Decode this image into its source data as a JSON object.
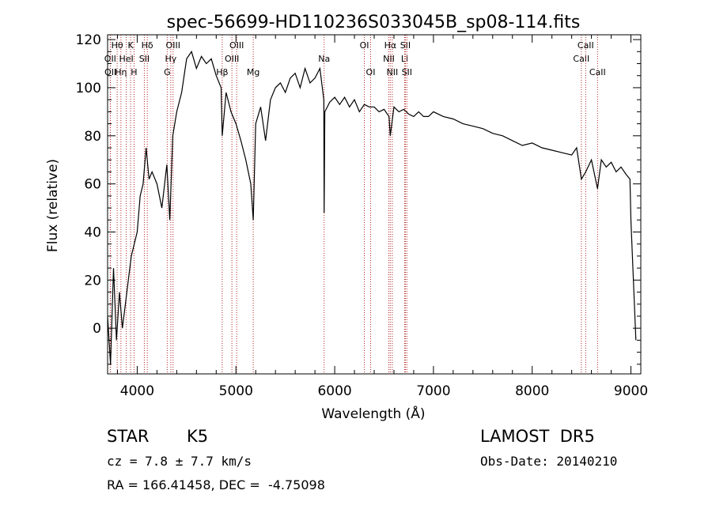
{
  "chart_data": {
    "type": "line",
    "title": "spec-56699-HD110236S033045B_sp08-114.fits",
    "xlabel": "Wavelength (Å)",
    "ylabel": "Flux (relative)",
    "xlim": [
      3700,
      9100
    ],
    "ylim": [
      -19,
      122
    ],
    "xticks": [
      4000,
      5000,
      6000,
      7000,
      8000,
      9000
    ],
    "yticks": [
      0,
      20,
      40,
      60,
      80,
      100,
      120
    ],
    "grid": false,
    "line_color": "#000000",
    "marker_color": "#b22222",
    "series": [
      {
        "x": [
          3700,
          3730,
          3760,
          3790,
          3820,
          3850,
          3880,
          3910,
          3940,
          3970,
          4000,
          4030,
          4060,
          4090,
          4120,
          4150,
          4200,
          4250,
          4300,
          4330,
          4360,
          4400,
          4450,
          4500,
          4550,
          4600,
          4650,
          4700,
          4750,
          4800,
          4850,
          4861,
          4900,
          4950,
          5000,
          5050,
          5100,
          5150,
          5175,
          5200,
          5250,
          5300,
          5350,
          5400,
          5450,
          5500,
          5550,
          5600,
          5650,
          5700,
          5750,
          5800,
          5850,
          5890,
          5893,
          5900,
          5950,
          6000,
          6050,
          6100,
          6150,
          6200,
          6250,
          6300,
          6350,
          6400,
          6450,
          6500,
          6550,
          6563,
          6600,
          6650,
          6700,
          6750,
          6800,
          6850,
          6900,
          6950,
          7000,
          7100,
          7200,
          7300,
          7400,
          7500,
          7600,
          7700,
          7800,
          7900,
          8000,
          8100,
          8200,
          8300,
          8400,
          8450,
          8498,
          8542,
          8600,
          8662,
          8700,
          8750,
          8800,
          8850,
          8900,
          8950,
          8990,
          9000,
          9020,
          9050
        ],
        "y": [
          5,
          -15,
          25,
          -5,
          15,
          0,
          10,
          20,
          30,
          35,
          40,
          55,
          60,
          75,
          62,
          65,
          60,
          50,
          68,
          45,
          80,
          90,
          98,
          112,
          115,
          108,
          113,
          110,
          112,
          105,
          100,
          80,
          98,
          90,
          85,
          78,
          70,
          60,
          45,
          85,
          92,
          78,
          95,
          100,
          102,
          98,
          104,
          106,
          100,
          108,
          102,
          104,
          108,
          95,
          48,
          90,
          94,
          96,
          93,
          96,
          92,
          95,
          90,
          93,
          92,
          92,
          90,
          91,
          88,
          80,
          92,
          90,
          91,
          89,
          88,
          90,
          88,
          88,
          90,
          88,
          87,
          85,
          84,
          83,
          81,
          80,
          78,
          76,
          77,
          75,
          74,
          73,
          72,
          75,
          62,
          65,
          70,
          58,
          70,
          67,
          69,
          65,
          67,
          64,
          62,
          45,
          25,
          -5
        ]
      }
    ],
    "lines": [
      {
        "label": "Hθ",
        "wl": 3797,
        "row": 1
      },
      {
        "label": "OII",
        "wl": 3727,
        "row": 2
      },
      {
        "label": "OII",
        "wl": 3729,
        "row": 3
      },
      {
        "label": "Hη",
        "wl": 3835,
        "row": 3
      },
      {
        "label": "HeI",
        "wl": 3889,
        "row": 2
      },
      {
        "label": "K",
        "wl": 3933,
        "row": 1
      },
      {
        "label": "H",
        "wl": 3968,
        "row": 3
      },
      {
        "label": "SII",
        "wl": 4072,
        "row": 2
      },
      {
        "label": "Hδ",
        "wl": 4102,
        "row": 1
      },
      {
        "label": "G",
        "wl": 4304,
        "row": 3
      },
      {
        "label": "Hγ",
        "wl": 4340,
        "row": 2
      },
      {
        "label": "OIII",
        "wl": 4363,
        "row": 1
      },
      {
        "label": "Hβ",
        "wl": 4861,
        "row": 3
      },
      {
        "label": "OIII",
        "wl": 4959,
        "row": 2
      },
      {
        "label": "OIII",
        "wl": 5007,
        "row": 1
      },
      {
        "label": "Mg",
        "wl": 5175,
        "row": 3
      },
      {
        "label": "Na",
        "wl": 5893,
        "row": 2
      },
      {
        "label": "OI",
        "wl": 6300,
        "row": 1
      },
      {
        "label": "OI",
        "wl": 6364,
        "row": 3
      },
      {
        "label": "NII",
        "wl": 6548,
        "row": 2
      },
      {
        "label": "Hα",
        "wl": 6563,
        "row": 1
      },
      {
        "label": "NII",
        "wl": 6583,
        "row": 3
      },
      {
        "label": "Li",
        "wl": 6708,
        "row": 2
      },
      {
        "label": "SII",
        "wl": 6716,
        "row": 1
      },
      {
        "label": "SII",
        "wl": 6731,
        "row": 3
      },
      {
        "label": "CaII",
        "wl": 8498,
        "row": 2
      },
      {
        "label": "CaII",
        "wl": 8542,
        "row": 1
      },
      {
        "label": "CaII",
        "wl": 8662,
        "row": 3
      }
    ]
  },
  "info": {
    "object_class": "STAR",
    "subclass": "K5",
    "survey": "LAMOST  DR5",
    "redshift_text": "cz = 7.8 ± 7.7 km/s",
    "obs_date": "Obs-Date: 20140210",
    "coords": "RA = 166.41458, DEC =  -4.75098"
  }
}
